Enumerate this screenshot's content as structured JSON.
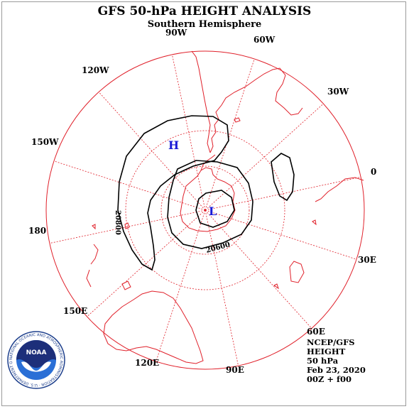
{
  "header": {
    "title": "GFS 50-hPa HEIGHT ANALYSIS",
    "subtitle": "Southern Hemisphere"
  },
  "longitude_labels": [
    "90W",
    "60W",
    "30W",
    "0",
    "30E",
    "60E",
    "90E",
    "120E",
    "150E",
    "180",
    "150W",
    "120W"
  ],
  "contours": {
    "values": [
      "20800",
      "20600"
    ]
  },
  "pressure_systems": {
    "high": "H",
    "low": "L"
  },
  "info_block": {
    "lines": [
      "NCEP/GFS",
      "HEIGHT",
      "50 hPa",
      "Feb 23, 2020",
      "00Z + f00"
    ]
  },
  "logo": {
    "text": "NOAA",
    "ring_text": "NATIONAL OCEANIC AND ATMOSPHERIC ADMINISTRATION · U.S. DEPARTMENT OF COMMERCE ·"
  },
  "colors": {
    "grid": "#e0202a",
    "coast": "#e0202a",
    "contour": "#000000",
    "pressure_label": "#1a1ad6"
  }
}
